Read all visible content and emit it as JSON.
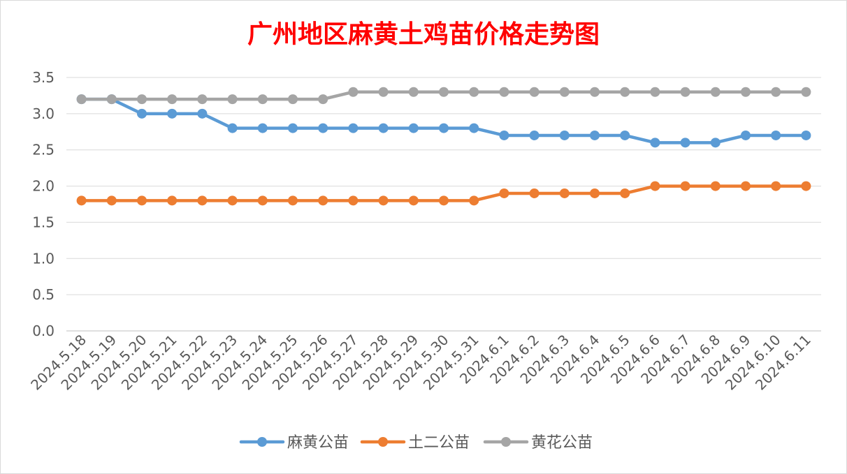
{
  "chart_data": {
    "type": "line",
    "title": "广州地区麻黄土鸡苗价格走势图",
    "xlabel": "",
    "ylabel": "",
    "ylim": [
      0,
      3.5
    ],
    "yticks": [
      "0.0",
      "0.5",
      "1.0",
      "1.5",
      "2.0",
      "2.5",
      "3.0",
      "3.5"
    ],
    "grid": true,
    "legend_position": "bottom",
    "title_color": "#ff0000",
    "categories": [
      "2024.5.18",
      "2024.5.19",
      "2024.5.20",
      "2024.5.21",
      "2024.5.22",
      "2024.5.23",
      "2024.5.24",
      "2024.5.25",
      "2024.5.26",
      "2024.5.27",
      "2024.5.28",
      "2024.5.29",
      "2024.5.30",
      "2024.5.31",
      "2024.6.1",
      "2024.6.2",
      "2024.6.3",
      "2024.6.4",
      "2024.6.5",
      "2024.6.6",
      "2024.6.7",
      "2024.6.8",
      "2024.6.9",
      "2024.6.10",
      "2024.6.11"
    ],
    "series": [
      {
        "name": "麻黄公苗",
        "color": "#5b9bd5",
        "values": [
          3.2,
          3.2,
          3.0,
          3.0,
          3.0,
          2.8,
          2.8,
          2.8,
          2.8,
          2.8,
          2.8,
          2.8,
          2.8,
          2.8,
          2.7,
          2.7,
          2.7,
          2.7,
          2.7,
          2.6,
          2.6,
          2.6,
          2.7,
          2.7,
          2.7
        ]
      },
      {
        "name": "土二公苗",
        "color": "#ed7d31",
        "values": [
          1.8,
          1.8,
          1.8,
          1.8,
          1.8,
          1.8,
          1.8,
          1.8,
          1.8,
          1.8,
          1.8,
          1.8,
          1.8,
          1.8,
          1.9,
          1.9,
          1.9,
          1.9,
          1.9,
          2.0,
          2.0,
          2.0,
          2.0,
          2.0,
          2.0
        ]
      },
      {
        "name": "黄花公苗",
        "color": "#a5a5a5",
        "values": [
          3.2,
          3.2,
          3.2,
          3.2,
          3.2,
          3.2,
          3.2,
          3.2,
          3.2,
          3.3,
          3.3,
          3.3,
          3.3,
          3.3,
          3.3,
          3.3,
          3.3,
          3.3,
          3.3,
          3.3,
          3.3,
          3.3,
          3.3,
          3.3,
          3.3
        ]
      }
    ]
  }
}
